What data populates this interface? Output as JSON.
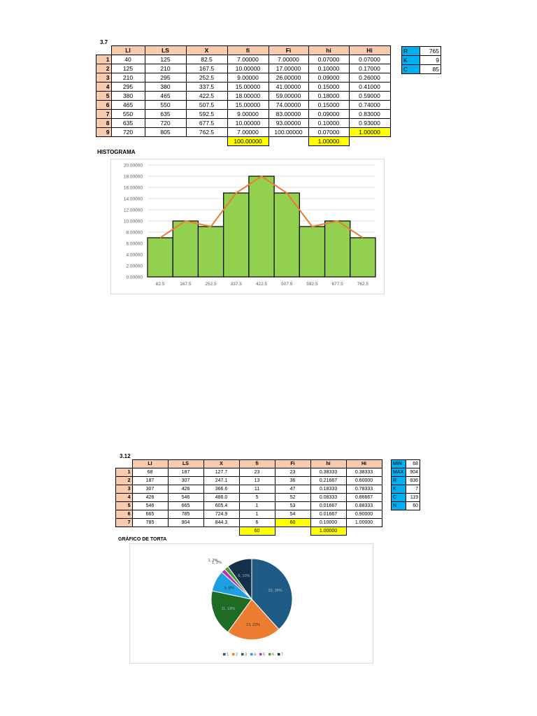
{
  "section1": {
    "title": "3.7",
    "headers": [
      "LI",
      "LS",
      "X",
      "fi",
      "Fi",
      "hi",
      "Hi"
    ],
    "rows": [
      {
        "n": "1",
        "cells": [
          "40",
          "125",
          "82.5",
          "7.00000",
          "7.00000",
          "0.07000",
          "0.07000"
        ]
      },
      {
        "n": "2",
        "cells": [
          "125",
          "210",
          "167.5",
          "10.00000",
          "17.00000",
          "0.10000",
          "0.17000"
        ]
      },
      {
        "n": "3",
        "cells": [
          "210",
          "295",
          "252.5",
          "9.00000",
          "26.00000",
          "0.09000",
          "0.26000"
        ]
      },
      {
        "n": "4",
        "cells": [
          "295",
          "380",
          "337.5",
          "15.00000",
          "41.00000",
          "0.15000",
          "0.41000"
        ]
      },
      {
        "n": "5",
        "cells": [
          "380",
          "465",
          "422.5",
          "18.00000",
          "59.00000",
          "0.18000",
          "0.59000"
        ]
      },
      {
        "n": "6",
        "cells": [
          "465",
          "550",
          "507.5",
          "15.00000",
          "74.00000",
          "0.15000",
          "0.74000"
        ]
      },
      {
        "n": "7",
        "cells": [
          "550",
          "635",
          "592.5",
          "9.00000",
          "83.00000",
          "0.09000",
          "0.83000"
        ]
      },
      {
        "n": "8",
        "cells": [
          "635",
          "720",
          "677.5",
          "10.00000",
          "93.00000",
          "0.10000",
          "0.93000"
        ]
      },
      {
        "n": "9",
        "cells": [
          "720",
          "805",
          "762.5",
          "7.00000",
          "100.00000",
          "0.07000",
          "1.00000"
        ]
      }
    ],
    "total_fi": "100.00000",
    "total_hi": "1.00000",
    "side": [
      {
        "k": "R",
        "v": "765"
      },
      {
        "k": "K",
        "v": "9"
      },
      {
        "k": "C",
        "v": "85"
      }
    ],
    "chart_title": "HISTOGRAMA"
  },
  "section2": {
    "title": "3.12",
    "headers": [
      "LI",
      "LS",
      "X",
      "fi",
      "Fi",
      "hi",
      "Hi"
    ],
    "rows": [
      {
        "n": "1",
        "cells": [
          "68",
          "187",
          "127.7",
          "23",
          "23",
          "0.38333",
          "0.38333"
        ]
      },
      {
        "n": "2",
        "cells": [
          "187",
          "307",
          "247.1",
          "13",
          "36",
          "0.21667",
          "0.60000"
        ]
      },
      {
        "n": "3",
        "cells": [
          "307",
          "426",
          "366.6",
          "11",
          "47",
          "0.18333",
          "0.78333"
        ]
      },
      {
        "n": "4",
        "cells": [
          "426",
          "546",
          "486.0",
          "5",
          "52",
          "0.08333",
          "0.86667"
        ]
      },
      {
        "n": "5",
        "cells": [
          "546",
          "665",
          "605.4",
          "1",
          "53",
          "0.01667",
          "0.88333"
        ]
      },
      {
        "n": "6",
        "cells": [
          "665",
          "785",
          "724.9",
          "1",
          "54",
          "0.01667",
          "0.90000"
        ]
      },
      {
        "n": "7",
        "cells": [
          "785",
          "904",
          "844.3",
          "6",
          "60",
          "0.10000",
          "1.00000"
        ]
      }
    ],
    "total_fi": "60",
    "total_hi": "1.00000",
    "side": [
      {
        "k": "MIN",
        "v": "68"
      },
      {
        "k": "MAX",
        "v": "904"
      },
      {
        "k": "R",
        "v": "836"
      },
      {
        "k": "K",
        "v": "7"
      },
      {
        "k": "C",
        "v": "119"
      },
      {
        "k": "N",
        "v": "60"
      }
    ],
    "chart_title": "GRÁFICO DE TORTA"
  },
  "chart_data": [
    {
      "type": "bar",
      "title": "",
      "categories": [
        "82.5",
        "167.5",
        "252.5",
        "337.5",
        "422.5",
        "507.5",
        "592.5",
        "677.5",
        "762.5"
      ],
      "values": [
        7,
        10,
        9,
        15,
        18,
        15,
        9,
        10,
        7
      ],
      "overlay_line": [
        7,
        10,
        9,
        15,
        18,
        15,
        9,
        10,
        7
      ],
      "ylim": [
        0,
        20
      ],
      "yticks": [
        "0.00000",
        "2.00000",
        "4.00000",
        "6.00000",
        "8.00000",
        "10.00000",
        "12.00000",
        "14.00000",
        "16.00000",
        "18.00000",
        "20.00000"
      ],
      "grid": true,
      "bar_color": "#92d050",
      "line_color": "#ed7d31"
    },
    {
      "type": "pie",
      "title": "",
      "categories": [
        "1",
        "2",
        "3",
        "4",
        "5",
        "6",
        "7"
      ],
      "values": [
        23,
        13,
        11,
        5,
        1,
        1,
        6
      ],
      "labels": [
        "23, 38%",
        "13, 22%",
        "11, 18%",
        "5, 8%",
        "1, 2%",
        "1, 2%",
        "6, 10%"
      ],
      "colors": [
        "#1f5c85",
        "#ed7d31",
        "#1e6b24",
        "#1e9fe0",
        "#b435b4",
        "#4e9a2e",
        "#132f4a"
      ],
      "legend": "bottom"
    }
  ]
}
